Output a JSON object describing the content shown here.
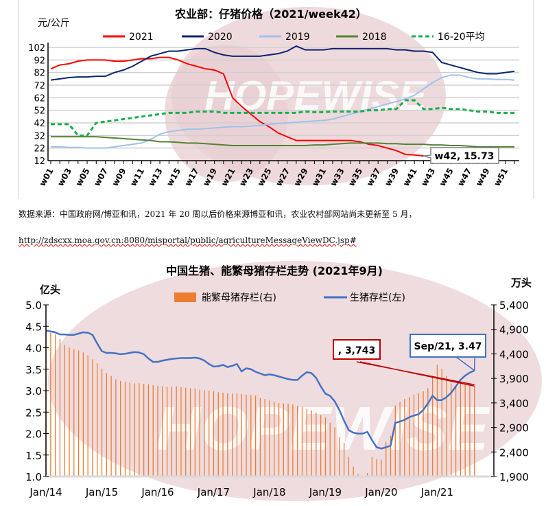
{
  "watermark": "HOPEWISE",
  "source_note": "数据来源：中国政府网/博亚和讯，2021 年 20 周以后价格来源博亚和讯，农业农村部网站尚未更新至 5 月，",
  "source_url": "http://zdscxx.moa.gov.cn:8080/misportal/public/agricultureMessageViewDC.jsp#",
  "chart_data": [
    {
      "type": "line",
      "title": "农业部：仔猪价格（2021/week42）",
      "ylabel": "元/公斤",
      "ylim": [
        12,
        108
      ],
      "yticks": [
        "102",
        "92",
        "82",
        "72",
        "62",
        "52",
        "42",
        "32",
        "22",
        "12"
      ],
      "xtick_labels": [
        "w01",
        "w03",
        "w05",
        "w07",
        "w09",
        "w11",
        "w13",
        "w15",
        "w17",
        "w19",
        "w21",
        "w23",
        "w25",
        "w27",
        "w29",
        "w31",
        "w33",
        "w35",
        "w37",
        "w39",
        "w41",
        "w43",
        "w45",
        "w47",
        "w49",
        "w51"
      ],
      "grid": true,
      "legend": "top",
      "series": [
        {
          "name": "2021",
          "color": "#ff0000",
          "dashed": false,
          "values": [
            85,
            88,
            89,
            91,
            92,
            92,
            92,
            91,
            91,
            92,
            93,
            93,
            94,
            94,
            92,
            89,
            87,
            85,
            84,
            81,
            62,
            55,
            49,
            43,
            39,
            34,
            31,
            28,
            28,
            28,
            28,
            28,
            28,
            28,
            27,
            25,
            24,
            22,
            20,
            17,
            16.5,
            15.73
          ]
        },
        {
          "name": "2020",
          "color": "#0b2470",
          "dashed": false,
          "values": [
            76,
            77,
            78,
            78.5,
            78.5,
            79,
            79,
            82,
            84,
            87,
            91,
            95,
            97,
            99,
            99,
            100,
            101,
            101,
            98,
            96,
            95,
            95,
            95,
            95,
            96,
            97,
            99,
            103,
            100,
            100,
            100,
            101,
            101,
            101,
            101,
            101,
            101,
            101,
            100,
            100,
            99,
            99,
            98,
            90,
            88,
            86,
            84,
            82,
            81,
            81,
            82,
            83
          ]
        },
        {
          "name": "2019",
          "color": "#9ec3ea",
          "dashed": false,
          "values": [
            23,
            23,
            22.5,
            22.5,
            22,
            22,
            22,
            23,
            24,
            25,
            26,
            29,
            33,
            35,
            36,
            37,
            37,
            37.5,
            38,
            38.5,
            39,
            39,
            39.5,
            40,
            41,
            41.5,
            42,
            42.5,
            43,
            43.5,
            44,
            45,
            47,
            49,
            51,
            53,
            55,
            57,
            59,
            61,
            64,
            69,
            74,
            78,
            80,
            80,
            78,
            77,
            77,
            76.5,
            76.5,
            76
          ]
        },
        {
          "name": "2018",
          "color": "#548235",
          "dashed": false,
          "values": [
            31,
            31,
            31,
            31,
            31,
            31,
            30.5,
            30,
            29.5,
            29,
            28.5,
            28,
            27,
            27,
            26.5,
            26,
            26,
            25.5,
            25,
            24.5,
            24,
            24,
            24,
            24,
            24,
            24,
            24,
            24,
            24,
            24.5,
            24.5,
            25,
            25.5,
            26,
            26,
            26,
            26,
            25.5,
            25.5,
            25,
            25,
            25,
            24.5,
            24.5,
            24,
            24,
            23.5,
            23,
            23,
            23,
            23,
            23
          ]
        },
        {
          "name": "16-20平均",
          "color": "#1aad4c",
          "dashed": true,
          "values": [
            41,
            41,
            41,
            32,
            32,
            42,
            43,
            44,
            45,
            46,
            47,
            48,
            49,
            50,
            50,
            50,
            51,
            51,
            51,
            50,
            50,
            50,
            50,
            50,
            50,
            50,
            50,
            50,
            51,
            50.5,
            50.5,
            51,
            51,
            51,
            51,
            52,
            52,
            53,
            53,
            60,
            60,
            53,
            53,
            54,
            53,
            53,
            52,
            51,
            51,
            50,
            50,
            50
          ]
        }
      ],
      "annotation": {
        "label": "w42, 15.73",
        "week": 42,
        "value": 15.73
      }
    },
    {
      "type": "bar+line",
      "title": "中国生猪、能繁母猪存栏走势 (2021年9月)",
      "ylabel_left": "亿头",
      "ylabel_right": "万头",
      "ylim_left": [
        1.0,
        5.0
      ],
      "ylim_right": [
        1900,
        5400
      ],
      "yticks_left": [
        "5.0",
        "4.5",
        "4.0",
        "3.5",
        "3.0",
        "2.5",
        "2.0",
        "1.5",
        "1.0"
      ],
      "yticks_right": [
        "5,400",
        "4,900",
        "4,400",
        "3,900",
        "3,400",
        "2,900",
        "2,400",
        "1,900"
      ],
      "xtick_labels": [
        "Jan/14",
        "Jan/15",
        "Jan/16",
        "Jan/17",
        "Jan/18",
        "Jan/19",
        "Jan/20",
        "Jan/21"
      ],
      "x_range": [
        "Jan/14",
        "Sep/21"
      ],
      "legend": "top",
      "bar_series": {
        "name": "能繁母猪存栏(右)",
        "color": "#ed7d31",
        "axis": "right",
        "values": [
          4850,
          4830,
          4800,
          4700,
          4580,
          4530,
          4500,
          4470,
          4430,
          4370,
          4290,
          4210,
          4100,
          4010,
          3950,
          3880,
          3850,
          3830,
          3810,
          3800,
          3800,
          3790,
          3780,
          3760,
          3750,
          3740,
          3730,
          3730,
          3740,
          3720,
          3710,
          3700,
          3690,
          3670,
          3660,
          3650,
          3640,
          3620,
          3610,
          3600,
          3590,
          3590,
          3580,
          3570,
          3560,
          3550,
          3500,
          3480,
          3450,
          3420,
          3400,
          3390,
          3380,
          3370,
          3340,
          3320,
          3280,
          3250,
          3200,
          3150,
          3100,
          3000,
          2900,
          2700,
          2580,
          2300,
          2100,
          1950,
          1920,
          1970,
          2300,
          2250,
          2240,
          2600,
          2730,
          3350,
          3420,
          3480,
          3520,
          3570,
          3600,
          3640,
          3700,
          3950,
          4180,
          4100,
          3950,
          3800,
          3750,
          3800,
          3780,
          3780,
          3743
        ]
      },
      "line_series": {
        "name": "生猪存栏(左)",
        "color": "#4472c4",
        "axis": "left",
        "values": [
          4.4,
          4.38,
          4.36,
          4.31,
          4.31,
          4.3,
          4.3,
          4.33,
          4.36,
          4.35,
          4.3,
          4.1,
          3.92,
          3.88,
          3.88,
          3.87,
          3.85,
          3.86,
          3.88,
          3.9,
          3.89,
          3.85,
          3.75,
          3.67,
          3.67,
          3.7,
          3.72,
          3.74,
          3.75,
          3.76,
          3.76,
          3.76,
          3.77,
          3.75,
          3.7,
          3.62,
          3.56,
          3.57,
          3.6,
          3.55,
          3.58,
          3.62,
          3.45,
          3.52,
          3.5,
          3.44,
          3.4,
          3.36,
          3.38,
          3.36,
          3.33,
          3.3,
          3.27,
          3.25,
          3.25,
          3.35,
          3.43,
          3.41,
          3.3,
          3.1,
          2.93,
          2.88,
          2.75,
          2.55,
          2.3,
          2.08,
          2.02,
          2.0,
          2.0,
          2.04,
          1.85,
          1.68,
          1.65,
          1.68,
          1.72,
          2.25,
          2.28,
          2.32,
          2.38,
          2.42,
          2.45,
          2.55,
          2.7,
          2.88,
          2.78,
          2.78,
          2.85,
          2.95,
          3.1,
          3.25,
          3.35,
          3.42,
          3.47
        ]
      },
      "annotations": [
        {
          "label": ", 3,743",
          "color": "#c00000",
          "series": "能繁母猪存栏(右)",
          "value": 3743
        },
        {
          "label": "Sep/21, 3.47",
          "color": "#4472c4",
          "series": "生猪存栏(左)",
          "value": 3.47
        }
      ]
    }
  ]
}
